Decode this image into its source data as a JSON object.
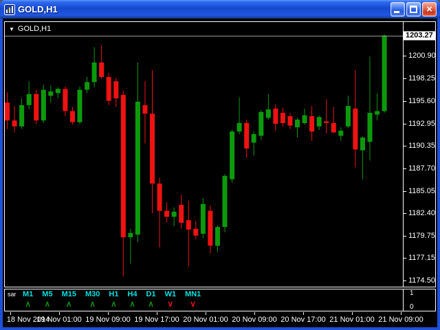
{
  "window": {
    "title": "GOLD,H1",
    "close_glyph": "×"
  },
  "chart": {
    "symbol_label": "GOLD,H1",
    "dropdown_glyph": "▼",
    "current_price_label": "1203.27"
  },
  "indicator": {
    "name": "sar",
    "arrow_up": "∧",
    "arrow_down": "∨",
    "scale_top": "1",
    "scale_bottom": "0",
    "timeframes": [
      {
        "label": "M1",
        "signal": "up"
      },
      {
        "label": "M5",
        "signal": "up"
      },
      {
        "label": "M15",
        "signal": "up"
      },
      {
        "label": "M30",
        "signal": "up"
      },
      {
        "label": "H1",
        "signal": "up"
      },
      {
        "label": "H4",
        "signal": "up"
      },
      {
        "label": "D1",
        "signal": "up"
      },
      {
        "label": "W1",
        "signal": "down"
      },
      {
        "label": "MN1",
        "signal": "down"
      }
    ]
  },
  "chart_data": {
    "type": "candlestick",
    "title": "GOLD,H1",
    "symbol": "GOLD",
    "timeframe": "H1",
    "y_range": [
      1173.8,
      1204.85
    ],
    "current_price": 1203.27,
    "y_ticks": [
      "1200.90",
      "1198.25",
      "1195.60",
      "1192.95",
      "1190.35",
      "1187.70",
      "1185.05",
      "1182.40",
      "1179.75",
      "1177.15",
      "1174.50"
    ],
    "x_ticks": [
      "18 Nov 2014",
      "19 Nov 01:00",
      "19 Nov 09:00",
      "19 Nov 17:00",
      "20 Nov 01:00",
      "20 Nov 09:00",
      "20 Nov 17:00",
      "21 Nov 01:00",
      "21 Nov 09:00"
    ],
    "colors": {
      "bull": "#0c9a0c",
      "bear": "#ee1212",
      "axis_text": "#ffffff",
      "price_line": "#9a9a9a",
      "timeframe_text": "#00e0e0",
      "arrow_up": "#0c8a0c",
      "arrow_down": "#e01010",
      "background": "#000000"
    },
    "candles": [
      [
        1195.4,
        1196.6,
        1192.3,
        1193.3
      ],
      [
        1193.3,
        1195.0,
        1191.9,
        1192.6
      ],
      [
        1192.6,
        1195.9,
        1192.3,
        1195.1
      ],
      [
        1195.1,
        1197.9,
        1194.6,
        1196.4
      ],
      [
        1196.4,
        1196.9,
        1192.9,
        1193.3
      ],
      [
        1193.3,
        1197.5,
        1193.0,
        1196.9
      ],
      [
        1196.2,
        1197.4,
        1195.4,
        1196.7
      ],
      [
        1196.5,
        1197.2,
        1195.9,
        1197.0
      ],
      [
        1197.0,
        1197.3,
        1193.8,
        1194.4
      ],
      [
        1194.4,
        1194.9,
        1192.8,
        1193.1
      ],
      [
        1193.1,
        1197.3,
        1192.9,
        1196.9
      ],
      [
        1196.9,
        1198.4,
        1196.5,
        1197.8
      ],
      [
        1197.8,
        1201.9,
        1197.2,
        1200.1
      ],
      [
        1200.1,
        1202.1,
        1198.2,
        1198.4
      ],
      [
        1198.4,
        1198.9,
        1195.1,
        1195.6
      ],
      [
        1197.9,
        1198.3,
        1194.9,
        1195.9
      ],
      [
        1196.3,
        1196.8,
        1175.0,
        1179.6
      ],
      [
        1179.6,
        1180.6,
        1176.5,
        1180.1
      ],
      [
        1179.9,
        1200.1,
        1179.0,
        1195.5
      ],
      [
        1195.1,
        1197.9,
        1190.6,
        1194.1
      ],
      [
        1194.1,
        1199.2,
        1182.4,
        1185.9
      ],
      [
        1185.9,
        1186.6,
        1178.4,
        1182.7
      ],
      [
        1182.7,
        1183.7,
        1181.4,
        1182.0
      ],
      [
        1182.0,
        1183.1,
        1180.9,
        1182.6
      ],
      [
        1183.4,
        1184.6,
        1180.6,
        1181.3
      ],
      [
        1181.6,
        1183.9,
        1176.2,
        1180.5
      ],
      [
        1180.6,
        1181.5,
        1179.4,
        1179.8
      ],
      [
        1180.0,
        1184.2,
        1179.5,
        1183.5
      ],
      [
        1182.7,
        1183.3,
        1177.7,
        1178.6
      ],
      [
        1178.6,
        1181.0,
        1177.9,
        1180.8
      ],
      [
        1180.8,
        1187.0,
        1180.2,
        1186.8
      ],
      [
        1186.4,
        1192.2,
        1186.0,
        1192.0
      ],
      [
        1192.0,
        1196.0,
        1191.7,
        1193.0
      ],
      [
        1193.0,
        1193.4,
        1188.9,
        1190.0
      ],
      [
        1190.7,
        1192.0,
        1189.2,
        1191.7
      ],
      [
        1191.5,
        1194.5,
        1191.0,
        1194.3
      ],
      [
        1193.6,
        1196.4,
        1193.4,
        1194.6
      ],
      [
        1194.7,
        1195.2,
        1192.1,
        1192.9
      ],
      [
        1194.2,
        1194.8,
        1192.6,
        1193.0
      ],
      [
        1193.8,
        1194.2,
        1192.3,
        1192.7
      ],
      [
        1192.5,
        1193.6,
        1191.3,
        1193.4
      ],
      [
        1193.0,
        1194.7,
        1192.8,
        1193.9
      ],
      [
        1193.8,
        1195.0,
        1190.9,
        1192.0
      ],
      [
        1192.6,
        1193.9,
        1192.2,
        1193.7
      ],
      [
        1193.2,
        1195.8,
        1191.8,
        1193.0
      ],
      [
        1193.0,
        1194.9,
        1191.8,
        1191.9
      ],
      [
        1191.5,
        1192.5,
        1190.9,
        1192.1
      ],
      [
        1192.6,
        1196.2,
        1192.4,
        1195.0
      ],
      [
        1194.7,
        1199.2,
        1187.8,
        1189.9
      ],
      [
        1189.8,
        1191.4,
        1186.4,
        1191.3
      ],
      [
        1190.8,
        1200.8,
        1188.6,
        1194.2
      ],
      [
        1194.0,
        1196.5,
        1193.3,
        1194.4
      ],
      [
        1194.4,
        1203.4,
        1194.2,
        1203.27
      ]
    ]
  }
}
